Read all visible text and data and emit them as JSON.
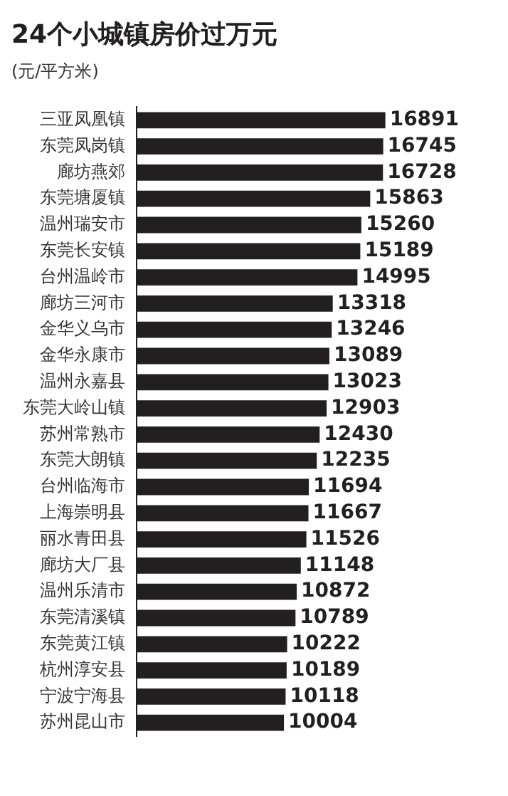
{
  "chart_data": {
    "type": "bar",
    "orientation": "horizontal",
    "title": "24个小城镇房价过万元",
    "subtitle": "(元/平方米)",
    "categories": [
      "三亚凤凰镇",
      "东莞凤岗镇",
      "廊坊燕郊",
      "东莞塘厦镇",
      "温州瑞安市",
      "东莞长安镇",
      "台州温岭市",
      "廊坊三河市",
      "金华义乌市",
      "金华永康市",
      "温州永嘉县",
      "东莞大岭山镇",
      "苏州常熟市",
      "东莞大朗镇",
      "台州临海市",
      "上海崇明县",
      "丽水青田县",
      "廊坊大厂县",
      "温州乐清市",
      "东莞清溪镇",
      "东莞黄江镇",
      "杭州淳安县",
      "宁波宁海县",
      "苏州昆山市"
    ],
    "values": [
      16891,
      16745,
      16728,
      15863,
      15260,
      15189,
      14995,
      13318,
      13246,
      13089,
      13023,
      12903,
      12430,
      12235,
      11694,
      11667,
      11526,
      11148,
      10872,
      10789,
      10222,
      10189,
      10118,
      10004
    ],
    "color": "#231f20",
    "data_labels": true,
    "grid": false,
    "legend": false,
    "tick_labels": "y"
  }
}
